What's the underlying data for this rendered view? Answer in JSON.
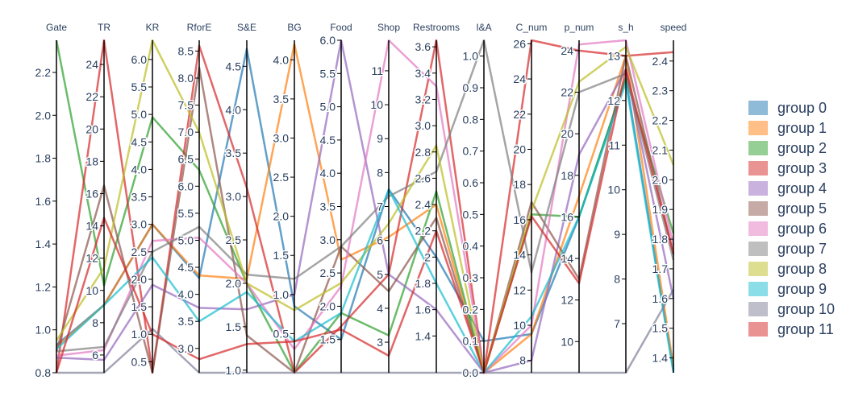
{
  "chart_data": {
    "type": "parallel_coordinates",
    "axes": [
      {
        "name": "Gate",
        "range": [
          0.8,
          2.35
        ],
        "ticks": [
          0.8,
          1.0,
          1.2,
          1.4,
          1.6,
          1.8,
          2.0,
          2.2
        ],
        "tick_labels": [
          "0.8",
          "1.0",
          "1.2",
          "1.4",
          "1.6",
          "1.8",
          "2.0",
          "2.2"
        ]
      },
      {
        "name": "TR",
        "range": [
          4.9,
          25.5
        ],
        "ticks": [
          6,
          8,
          10,
          12,
          14,
          16,
          18,
          20,
          22,
          24
        ],
        "tick_labels": [
          "6",
          "8",
          "10",
          "12",
          "14",
          "16",
          "18",
          "20",
          "22",
          "24"
        ]
      },
      {
        "name": "KR",
        "range": [
          0.3,
          6.35
        ],
        "ticks": [
          0.5,
          1.0,
          1.5,
          2.0,
          2.5,
          3.0,
          3.5,
          4.0,
          4.5,
          5.0,
          5.5,
          6.0
        ],
        "tick_labels": [
          "0.5",
          "1.0",
          "1.5",
          "2.0",
          "2.5",
          "3.0",
          "3.5",
          "4.0",
          "4.5",
          "5.0",
          "5.5",
          "6.0"
        ]
      },
      {
        "name": "RforE",
        "range": [
          2.55,
          8.7
        ],
        "ticks": [
          3.0,
          3.5,
          4.0,
          4.5,
          5.0,
          5.5,
          6.0,
          6.5,
          7.0,
          7.5,
          8.0,
          8.5
        ],
        "tick_labels": [
          "3.0",
          "3.5",
          "4.0",
          "4.5",
          "5.0",
          "5.5",
          "6.0",
          "6.5",
          "7.0",
          "7.5",
          "8.0",
          "8.5"
        ]
      },
      {
        "name": "S&E",
        "range": [
          0.97,
          4.8
        ],
        "ticks": [
          1.0,
          1.5,
          2.0,
          2.5,
          3.0,
          3.5,
          4.0,
          4.5
        ],
        "tick_labels": [
          "1.0",
          "1.5",
          "2.0",
          "2.5",
          "3.0",
          "3.5",
          "4.0",
          "4.5"
        ]
      },
      {
        "name": "BG",
        "range": [
          0.0,
          4.25
        ],
        "ticks": [
          0.5,
          1.0,
          1.5,
          2.0,
          2.5,
          3.0,
          3.5,
          4.0
        ],
        "tick_labels": [
          "0.5",
          "1.0",
          "1.5",
          "2.0",
          "2.5",
          "3.0",
          "3.5",
          "4.0"
        ]
      },
      {
        "name": "Food",
        "range": [
          1.0,
          6.0
        ],
        "ticks": [
          1.5,
          2.0,
          2.5,
          3.0,
          3.5,
          4.0,
          4.5,
          5.0,
          5.5,
          6.0
        ],
        "tick_labels": [
          "1.5",
          "2.0",
          "2.5",
          "3.0",
          "3.5",
          "4.0",
          "4.5",
          "5.0",
          "5.5",
          "6.0"
        ]
      },
      {
        "name": "Shop",
        "range": [
          2.1,
          11.9
        ],
        "ticks": [
          3,
          4,
          5,
          6,
          7,
          8,
          9,
          10,
          11
        ],
        "tick_labels": [
          "3",
          "4",
          "5",
          "6",
          "7",
          "8",
          "9",
          "10",
          "11"
        ]
      },
      {
        "name": "Restrooms",
        "range": [
          1.12,
          3.65
        ],
        "ticks": [
          1.4,
          1.6,
          1.8,
          2.0,
          2.2,
          2.4,
          2.6,
          2.8,
          3.0,
          3.2,
          3.4,
          3.6
        ],
        "tick_labels": [
          "1.4",
          "1.6",
          "1.8",
          "2",
          "2.2",
          "2.4",
          "2.6",
          "2.8",
          "3.0",
          "3.2",
          "3.4",
          "3.6"
        ]
      },
      {
        "name": "I&A",
        "range": [
          0.0,
          1.05
        ],
        "ticks": [
          0.0,
          0.1,
          0.2,
          0.3,
          0.4,
          0.5,
          0.6,
          0.7,
          0.8,
          0.9,
          1.0
        ],
        "tick_labels": [
          "0.0",
          "0.1",
          "0.2",
          "0.3",
          "0.4",
          "0.5",
          "0.6",
          "0.7",
          "0.8",
          "0.9",
          "1.0"
        ]
      },
      {
        "name": "C_num",
        "range": [
          7.3,
          26.2
        ],
        "ticks": [
          8,
          10,
          12,
          14,
          16,
          18,
          20,
          22,
          24,
          26
        ],
        "tick_labels": [
          "8",
          "10",
          "12",
          "14",
          "16",
          "18",
          "20",
          "22",
          "24",
          "26"
        ]
      },
      {
        "name": "p_num",
        "range": [
          8.5,
          24.5
        ],
        "ticks": [
          10,
          12,
          14,
          16,
          18,
          20,
          22,
          24
        ],
        "tick_labels": [
          "10",
          "12",
          "14",
          "16",
          "18",
          "20",
          "22",
          "24"
        ]
      },
      {
        "name": "s_h",
        "range": [
          5.9,
          13.35
        ],
        "ticks": [
          7,
          8,
          9,
          10,
          11,
          12,
          13
        ],
        "tick_labels": [
          "7",
          "8",
          "9",
          "10",
          "11",
          "12",
          "13"
        ]
      },
      {
        "name": "speed",
        "range": [
          1.35,
          2.47
        ],
        "ticks": [
          1.4,
          1.5,
          1.6,
          1.7,
          1.8,
          1.9,
          2.0,
          2.1,
          2.2,
          2.3,
          2.4
        ],
        "tick_labels": [
          "1.4",
          "1.5",
          "1.6",
          "1.7",
          "1.8",
          "1.9",
          "2.0",
          "2.1",
          "2.2",
          "2.3",
          "2.4"
        ]
      }
    ],
    "series": [
      {
        "name": "group 0",
        "color": "#1f77b4",
        "values": [
          0.93,
          9.1,
          3.0,
          4.3,
          4.7,
          0.85,
          1.5,
          7.5,
          2.0,
          0.1,
          9.5,
          16.0,
          12.5,
          1.36
        ]
      },
      {
        "name": "group 1",
        "color": "#ff7f0e",
        "values": [
          0.92,
          9.1,
          3.0,
          4.35,
          2.05,
          4.2,
          2.7,
          6.1,
          2.4,
          0.0,
          9.5,
          17.0,
          13.0,
          1.37
        ]
      },
      {
        "name": "group 2",
        "color": "#2ca02c",
        "values": [
          2.35,
          10.3,
          4.95,
          6.3,
          2.0,
          0.0,
          1.9,
          3.2,
          2.5,
          0.0,
          16.3,
          16.0,
          12.5,
          1.82
        ]
      },
      {
        "name": "group 3",
        "color": "#d62728",
        "values": [
          0.8,
          25.5,
          0.3,
          8.6,
          3.1,
          0.0,
          1.7,
          5.0,
          3.65,
          0.0,
          26.2,
          24.0,
          13.0,
          2.43
        ]
      },
      {
        "name": "group 4",
        "color": "#9467bd",
        "values": [
          0.87,
          5.7,
          1.9,
          3.75,
          1.7,
          1.0,
          6.0,
          5.0,
          1.6,
          0.0,
          8.0,
          19.0,
          12.7,
          1.6
        ]
      },
      {
        "name": "group 5",
        "color": "#8c564b",
        "values": [
          0.9,
          16.5,
          0.3,
          8.2,
          1.4,
          0.0,
          2.9,
          4.5,
          2.3,
          0.0,
          17.0,
          13.0,
          13.0,
          1.75
        ]
      },
      {
        "name": "group 6",
        "color": "#e377c2",
        "values": [
          0.88,
          6.3,
          2.7,
          5.05,
          2.0,
          0.3,
          2.3,
          11.9,
          3.3,
          0.0,
          10.0,
          24.3,
          13.35,
          1.78
        ]
      },
      {
        "name": "group 7",
        "color": "#7f7f7f",
        "values": [
          0.9,
          6.5,
          2.5,
          5.25,
          2.1,
          1.2,
          2.9,
          7.3,
          2.65,
          1.05,
          13.0,
          22.0,
          12.6,
          1.73
        ]
      },
      {
        "name": "group 8",
        "color": "#bcbd22",
        "values": [
          0.95,
          11.4,
          6.35,
          7.0,
          2.0,
          0.8,
          2.35,
          6.5,
          2.85,
          0.0,
          16.5,
          22.5,
          13.2,
          2.05
        ]
      },
      {
        "name": "group 9",
        "color": "#17becf",
        "values": [
          0.91,
          9.1,
          2.4,
          3.5,
          1.9,
          0.4,
          1.9,
          7.5,
          1.8,
          0.0,
          10.5,
          16.0,
          12.4,
          1.35
        ]
      },
      {
        "name": "group 10",
        "color": "#7f7f9a",
        "values": [
          0.8,
          4.9,
          1.1,
          2.55,
          0.97,
          0.0,
          1.0,
          2.1,
          1.12,
          0.0,
          7.3,
          8.5,
          5.9,
          1.63
        ]
      },
      {
        "name": "group 11",
        "color": "#d62728",
        "values": [
          0.8,
          14.5,
          1.0,
          2.8,
          1.3,
          0.4,
          1.65,
          2.6,
          2.2,
          0.0,
          16.2,
          12.8,
          12.7,
          1.75
        ]
      }
    ],
    "legend_position": "right",
    "grid": false
  }
}
